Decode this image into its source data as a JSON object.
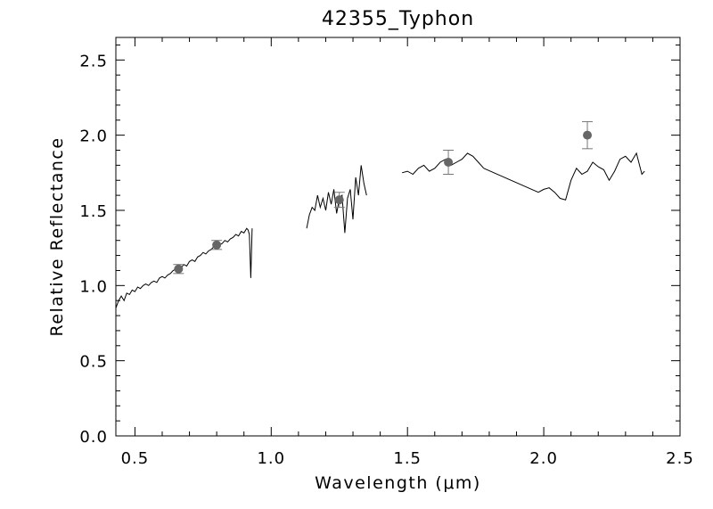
{
  "chart_data": {
    "type": "line",
    "title": "42355_Typhon",
    "xlabel": "Wavelength (μm)",
    "ylabel": "Relative Reflectance",
    "xlim": [
      0.43,
      2.5
    ],
    "ylim": [
      0.0,
      2.65
    ],
    "x_ticks": [
      "0.5",
      "1.0",
      "1.5",
      "2.0",
      "2.5"
    ],
    "y_ticks": [
      "0.0",
      "0.5",
      "1.0",
      "1.5",
      "2.0",
      "2.5"
    ],
    "grid": false,
    "series": [
      {
        "kind": "spectrum",
        "segments": [
          {
            "x": [
              0.43,
              0.44,
              0.45,
              0.46,
              0.47,
              0.48,
              0.49,
              0.5,
              0.51,
              0.52,
              0.53,
              0.54,
              0.55,
              0.56,
              0.57,
              0.58,
              0.59,
              0.6,
              0.61,
              0.62,
              0.63,
              0.64,
              0.65,
              0.66,
              0.67,
              0.68,
              0.69,
              0.7,
              0.71,
              0.72,
              0.73,
              0.74,
              0.75,
              0.76,
              0.77,
              0.78,
              0.79,
              0.8,
              0.81,
              0.82,
              0.83,
              0.84,
              0.85,
              0.86,
              0.87,
              0.88,
              0.89,
              0.9,
              0.91,
              0.915,
              0.92,
              0.925,
              0.93
            ],
            "y": [
              0.85,
              0.9,
              0.93,
              0.9,
              0.95,
              0.94,
              0.97,
              0.96,
              0.99,
              0.98,
              1.0,
              1.01,
              1.0,
              1.02,
              1.03,
              1.02,
              1.05,
              1.06,
              1.05,
              1.07,
              1.08,
              1.1,
              1.11,
              1.1,
              1.12,
              1.14,
              1.13,
              1.16,
              1.17,
              1.16,
              1.19,
              1.2,
              1.22,
              1.21,
              1.23,
              1.24,
              1.26,
              1.25,
              1.27,
              1.28,
              1.3,
              1.29,
              1.31,
              1.32,
              1.34,
              1.33,
              1.36,
              1.35,
              1.38,
              1.37,
              1.34,
              1.05,
              1.38
            ]
          },
          {
            "x": [
              1.13,
              1.14,
              1.15,
              1.16,
              1.17,
              1.18,
              1.19,
              1.2,
              1.21,
              1.22,
              1.23,
              1.24,
              1.25,
              1.26,
              1.27,
              1.28,
              1.29,
              1.3,
              1.31,
              1.32,
              1.33,
              1.34,
              1.35
            ],
            "y": [
              1.38,
              1.47,
              1.52,
              1.5,
              1.6,
              1.52,
              1.58,
              1.5,
              1.62,
              1.54,
              1.64,
              1.48,
              1.58,
              1.6,
              1.35,
              1.58,
              1.64,
              1.44,
              1.72,
              1.6,
              1.8,
              1.68,
              1.6
            ]
          },
          {
            "x": [
              1.48,
              1.5,
              1.52,
              1.54,
              1.56,
              1.58,
              1.6,
              1.62,
              1.64,
              1.66,
              1.68,
              1.7,
              1.72,
              1.74,
              1.76,
              1.78
            ],
            "y": [
              1.75,
              1.76,
              1.74,
              1.78,
              1.8,
              1.76,
              1.78,
              1.82,
              1.84,
              1.8,
              1.82,
              1.84,
              1.88,
              1.86,
              1.82,
              1.78
            ]
          },
          {
            "x": [
              1.78,
              1.98
            ],
            "y": [
              1.78,
              1.62
            ]
          },
          {
            "x": [
              1.98,
              2.0,
              2.02,
              2.04,
              2.06,
              2.08,
              2.1,
              2.12,
              2.14,
              2.16,
              2.18,
              2.2,
              2.22,
              2.24,
              2.26,
              2.28,
              2.3,
              2.32,
              2.34,
              2.36,
              2.37
            ],
            "y": [
              1.62,
              1.64,
              1.65,
              1.62,
              1.58,
              1.57,
              1.7,
              1.78,
              1.74,
              1.76,
              1.82,
              1.79,
              1.77,
              1.7,
              1.76,
              1.84,
              1.86,
              1.82,
              1.88,
              1.74,
              1.76
            ]
          }
        ]
      },
      {
        "kind": "photometry",
        "x": [
          0.66,
          0.8,
          1.25,
          1.65,
          2.16
        ],
        "y": [
          1.11,
          1.27,
          1.57,
          1.82,
          2.0
        ],
        "err": [
          0.03,
          0.03,
          0.05,
          0.08,
          0.09
        ]
      }
    ]
  }
}
